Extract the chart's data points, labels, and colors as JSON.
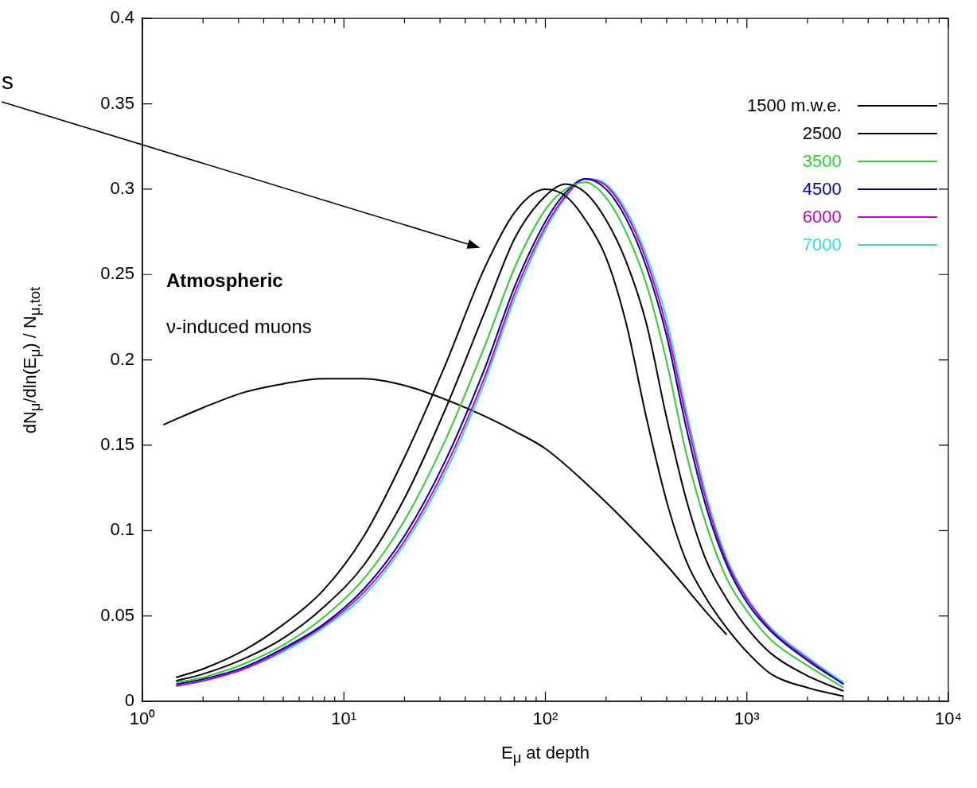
{
  "chart_data": {
    "type": "line",
    "xlabel": "E$_{μ}$ at depth",
    "ylabel": "dN$_{μ}$/dln(E$_{μ}$) / N$_{μ,tot}$",
    "log": "x",
    "xlim": [
      1,
      10000
    ],
    "ylim": [
      0,
      0.4
    ],
    "xticks": [
      {
        "value": 1,
        "label": "10⁰"
      },
      {
        "value": 2,
        "label": null
      },
      {
        "value": 3,
        "label": null
      },
      {
        "value": 4,
        "label": null
      },
      {
        "value": 5,
        "label": null
      },
      {
        "value": 6,
        "label": null
      },
      {
        "value": 7,
        "label": null
      },
      {
        "value": 8,
        "label": null
      },
      {
        "value": 9,
        "label": null
      },
      {
        "value": 10,
        "label": "10¹"
      },
      {
        "value": 20,
        "label": null
      },
      {
        "value": 30,
        "label": null
      },
      {
        "value": 40,
        "label": null
      },
      {
        "value": 50,
        "label": null
      },
      {
        "value": 60,
        "label": null
      },
      {
        "value": 70,
        "label": null
      },
      {
        "value": 80,
        "label": null
      },
      {
        "value": 90,
        "label": null
      },
      {
        "value": 100,
        "label": "10²"
      },
      {
        "value": 200,
        "label": null
      },
      {
        "value": 300,
        "label": null
      },
      {
        "value": 400,
        "label": null
      },
      {
        "value": 500,
        "label": null
      },
      {
        "value": 600,
        "label": null
      },
      {
        "value": 700,
        "label": null
      },
      {
        "value": 800,
        "label": null
      },
      {
        "value": 900,
        "label": null
      },
      {
        "value": 1000,
        "label": "10³"
      },
      {
        "value": 2000,
        "label": null
      },
      {
        "value": 3000,
        "label": null
      },
      {
        "value": 4000,
        "label": null
      },
      {
        "value": 5000,
        "label": null
      },
      {
        "value": 6000,
        "label": null
      },
      {
        "value": 7000,
        "label": null
      },
      {
        "value": 8000,
        "label": null
      },
      {
        "value": 9000,
        "label": null
      },
      {
        "value": 10000,
        "label": "10⁴"
      }
    ],
    "yticks": [
      0,
      0.05,
      0.1,
      0.15,
      0.2,
      0.25,
      0.3,
      0.35,
      0.4
    ],
    "grid": false,
    "legend": "top right",
    "annotations": [
      "s",
      "Atmospheric",
      "ν-induced muons"
    ],
    "series": [
      {
        "name": "1500 m.w.e.",
        "color": "#000000",
        "x": [
          1.47,
          2,
          3.2,
          5,
          7.9,
          12.6,
          20,
          31.6,
          50,
          71,
          100,
          126,
          158,
          200,
          251,
          316,
          398,
          501,
          631,
          794,
          1000,
          1318,
          1995,
          3020
        ],
        "values": [
          0.014,
          0.019,
          0.03,
          0.045,
          0.065,
          0.097,
          0.143,
          0.196,
          0.254,
          0.287,
          0.3,
          0.296,
          0.282,
          0.26,
          0.222,
          0.167,
          0.118,
          0.082,
          0.06,
          0.043,
          0.029,
          0.016,
          0.008,
          0.003
        ]
      },
      {
        "name": "2500",
        "color": "#000000",
        "x": [
          1.47,
          2,
          3.2,
          5,
          7.9,
          12.6,
          20,
          31.6,
          50,
          71,
          100,
          126,
          158,
          200,
          251,
          316,
          398,
          501,
          631,
          794,
          1000,
          1318,
          1995,
          3020
        ],
        "values": [
          0.012,
          0.016,
          0.025,
          0.037,
          0.055,
          0.08,
          0.119,
          0.17,
          0.228,
          0.272,
          0.296,
          0.303,
          0.298,
          0.282,
          0.258,
          0.222,
          0.167,
          0.118,
          0.082,
          0.06,
          0.043,
          0.028,
          0.015,
          0.006
        ]
      },
      {
        "name": "3500",
        "color": "#33cc33",
        "x": [
          1.47,
          2,
          3.2,
          5,
          7.9,
          12.6,
          20,
          31.6,
          50,
          71,
          100,
          126,
          158,
          200,
          251,
          316,
          398,
          501,
          631,
          794,
          1000,
          1318,
          1995,
          3020
        ],
        "values": [
          0.011,
          0.014,
          0.022,
          0.033,
          0.049,
          0.072,
          0.106,
          0.152,
          0.208,
          0.255,
          0.288,
          0.3,
          0.304,
          0.295,
          0.275,
          0.245,
          0.2,
          0.145,
          0.103,
          0.072,
          0.053,
          0.036,
          0.021,
          0.008
        ]
      },
      {
        "name": "4500",
        "color": "#0000a0",
        "x": [
          1.47,
          2,
          3.2,
          5,
          7.9,
          12.6,
          20,
          31.6,
          50,
          71,
          100,
          126,
          158,
          200,
          251,
          316,
          398,
          501,
          631,
          794,
          1000,
          1318,
          1995,
          3020
        ],
        "values": [
          0.01,
          0.013,
          0.02,
          0.031,
          0.045,
          0.066,
          0.097,
          0.14,
          0.195,
          0.244,
          0.281,
          0.298,
          0.306,
          0.3,
          0.283,
          0.255,
          0.215,
          0.16,
          0.113,
          0.08,
          0.058,
          0.041,
          0.024,
          0.01
        ]
      },
      {
        "name": "6000",
        "color": "#cc00cc",
        "x": [
          1.47,
          2,
          3.2,
          5,
          7.9,
          12.6,
          20,
          31.6,
          50,
          71,
          100,
          126,
          158,
          200,
          251,
          316,
          398,
          501,
          631,
          794,
          1000,
          1318,
          1995,
          3020
        ],
        "values": [
          0.009,
          0.012,
          0.019,
          0.03,
          0.044,
          0.064,
          0.094,
          0.136,
          0.19,
          0.24,
          0.278,
          0.296,
          0.306,
          0.302,
          0.286,
          0.259,
          0.22,
          0.166,
          0.117,
          0.082,
          0.06,
          0.042,
          0.025,
          0.01
        ]
      },
      {
        "name": "7000",
        "color": "#33dddd",
        "x": [
          1.47,
          2,
          3.2,
          5,
          7.9,
          12.6,
          20,
          31.6,
          50,
          71,
          100,
          126,
          158,
          200,
          251,
          316,
          398,
          501,
          631,
          794,
          1000,
          1318,
          1995,
          3020
        ],
        "values": [
          0.009,
          0.012,
          0.019,
          0.029,
          0.043,
          0.062,
          0.092,
          0.133,
          0.187,
          0.237,
          0.276,
          0.295,
          0.306,
          0.303,
          0.288,
          0.262,
          0.225,
          0.17,
          0.12,
          0.084,
          0.061,
          0.043,
          0.026,
          0.011
        ]
      },
      {
        "color": "#000000",
        "x": [
          1.27,
          2,
          3.2,
          5,
          7.9,
          12.6,
          20,
          31.6,
          50,
          71,
          100,
          158,
          251,
          398,
          631,
          794
        ],
        "values": [
          0.162,
          0.172,
          0.181,
          0.186,
          0.189,
          0.189,
          0.185,
          0.177,
          0.167,
          0.158,
          0.148,
          0.128,
          0.105,
          0.08,
          0.052,
          0.039
        ]
      }
    ]
  }
}
